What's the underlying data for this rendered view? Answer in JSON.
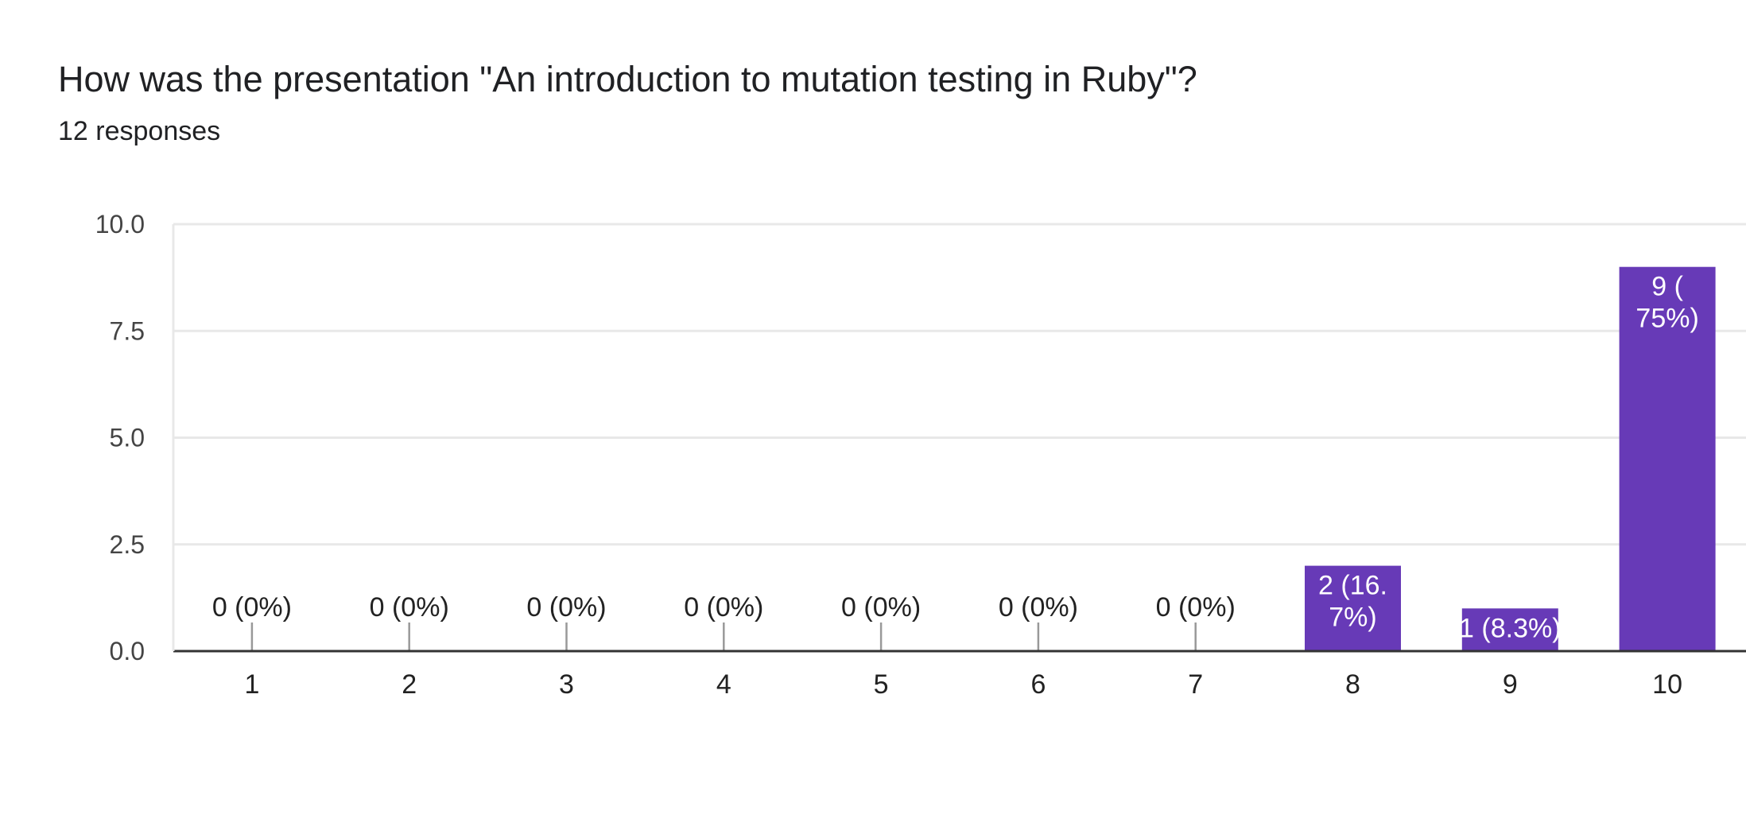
{
  "header": {
    "title": "How was the presentation \"An introduction to mutation testing in Ruby\"?",
    "subtitle": "12 responses"
  },
  "colors": {
    "bar": "#673ab7",
    "grid": "#e8e8e8",
    "axis": "#333333",
    "leader": "#999999"
  },
  "chart_data": {
    "type": "bar",
    "categories": [
      "1",
      "2",
      "3",
      "4",
      "5",
      "6",
      "7",
      "8",
      "9",
      "10"
    ],
    "values": [
      0,
      0,
      0,
      0,
      0,
      0,
      0,
      2,
      1,
      9
    ],
    "data_labels": [
      [
        "0 (0%)"
      ],
      [
        "0 (0%)"
      ],
      [
        "0 (0%)"
      ],
      [
        "0 (0%)"
      ],
      [
        "0 (0%)"
      ],
      [
        "0 (0%)"
      ],
      [
        "0 (0%)"
      ],
      [
        "2 (16.",
        "7%)"
      ],
      [
        "1 (8.3%)"
      ],
      [
        "9 (",
        "75%)"
      ]
    ],
    "title": "How was the presentation \"An introduction to mutation testing in Ruby\"?",
    "xlabel": "",
    "ylabel": "",
    "ylim": [
      0,
      10
    ],
    "yticks": [
      "0.0",
      "2.5",
      "5.0",
      "7.5",
      "10.0"
    ],
    "grid": true,
    "legend": "none"
  }
}
